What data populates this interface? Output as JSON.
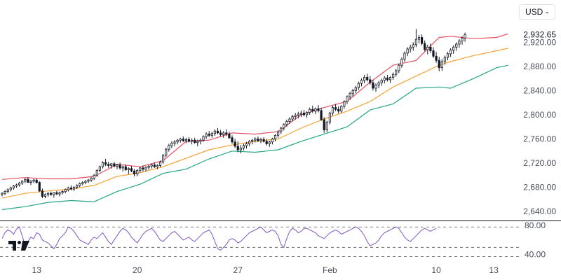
{
  "currency_selector": {
    "value": "USD"
  },
  "logo": {
    "name": "tradingview-logo-icon"
  },
  "colors": {
    "candle_up_fill": "#ffffff",
    "candle_down_fill": "#131722",
    "candle_outline": "#131722",
    "bb_upper": "#e4505f",
    "bb_basis": "#f7a233",
    "bb_lower": "#22a585",
    "rsi_line": "#7e57c2",
    "grid_dash": "#555555",
    "separator": "#131722",
    "axis_text": "#4a4e5a"
  },
  "chart_data": {
    "type": "candlestick",
    "symbol_currency": "USD",
    "last_price_label": "2,932.65",
    "last_price": 2932.65,
    "price_axis": {
      "ylim": [
        2625,
        2990
      ],
      "ticks": [
        2640,
        2680,
        2720,
        2760,
        2800,
        2840,
        2880,
        2920
      ],
      "tick_labels": [
        "2,640.00",
        "2,680.00",
        "2,720.00",
        "2,760.00",
        "2,800.00",
        "2,840.00",
        "2,880.00",
        "2,920.00"
      ]
    },
    "time_axis": {
      "labels": [
        {
          "text": "13",
          "index": 12
        },
        {
          "text": "20",
          "index": 47
        },
        {
          "text": "27",
          "index": 82
        },
        {
          "text": "Feb",
          "index": 114
        },
        {
          "text": "10",
          "index": 151
        },
        {
          "text": "13",
          "index": 171
        }
      ]
    },
    "candles": [
      [
        2668,
        2672,
        2665,
        2670
      ],
      [
        2670,
        2675,
        2667,
        2673
      ],
      [
        2673,
        2678,
        2670,
        2676
      ],
      [
        2676,
        2681,
        2673,
        2679
      ],
      [
        2679,
        2684,
        2676,
        2682
      ],
      [
        2682,
        2686,
        2679,
        2684
      ],
      [
        2684,
        2689,
        2681,
        2687
      ],
      [
        2687,
        2692,
        2684,
        2690
      ],
      [
        2690,
        2695,
        2687,
        2693
      ],
      [
        2693,
        2697,
        2689,
        2688
      ],
      [
        2688,
        2692,
        2684,
        2690
      ],
      [
        2690,
        2694,
        2687,
        2692
      ],
      [
        2692,
        2694,
        2686,
        2688
      ],
      [
        2688,
        2690,
        2672,
        2674
      ],
      [
        2674,
        2678,
        2662,
        2665
      ],
      [
        2665,
        2670,
        2662,
        2668
      ],
      [
        2668,
        2672,
        2664,
        2670
      ],
      [
        2670,
        2673,
        2666,
        2668
      ],
      [
        2668,
        2672,
        2663,
        2671
      ],
      [
        2671,
        2674,
        2667,
        2669
      ],
      [
        2669,
        2673,
        2665,
        2671
      ],
      [
        2671,
        2675,
        2668,
        2673
      ],
      [
        2673,
        2678,
        2670,
        2676
      ],
      [
        2676,
        2681,
        2673,
        2679
      ],
      [
        2679,
        2683,
        2675,
        2677
      ],
      [
        2677,
        2682,
        2674,
        2680
      ],
      [
        2680,
        2685,
        2677,
        2683
      ],
      [
        2683,
        2688,
        2680,
        2686
      ],
      [
        2686,
        2690,
        2683,
        2688
      ],
      [
        2688,
        2692,
        2685,
        2690
      ],
      [
        2690,
        2694,
        2687,
        2692
      ],
      [
        2692,
        2697,
        2689,
        2695
      ],
      [
        2695,
        2702,
        2692,
        2700
      ],
      [
        2700,
        2710,
        2697,
        2708
      ],
      [
        2708,
        2716,
        2705,
        2714
      ],
      [
        2714,
        2723,
        2711,
        2721
      ],
      [
        2721,
        2727,
        2715,
        2718
      ],
      [
        2718,
        2722,
        2712,
        2716
      ],
      [
        2716,
        2720,
        2711,
        2719
      ],
      [
        2719,
        2722,
        2713,
        2715
      ],
      [
        2715,
        2719,
        2710,
        2717
      ],
      [
        2717,
        2721,
        2709,
        2712
      ],
      [
        2712,
        2716,
        2706,
        2714
      ],
      [
        2714,
        2718,
        2707,
        2709
      ],
      [
        2709,
        2713,
        2702,
        2711
      ],
      [
        2711,
        2715,
        2705,
        2707
      ],
      [
        2707,
        2710,
        2698,
        2702
      ],
      [
        2702,
        2710,
        2698,
        2708
      ],
      [
        2708,
        2714,
        2704,
        2712
      ],
      [
        2712,
        2716,
        2706,
        2710
      ],
      [
        2710,
        2715,
        2706,
        2713
      ],
      [
        2713,
        2717,
        2709,
        2715
      ],
      [
        2715,
        2719,
        2711,
        2717
      ],
      [
        2717,
        2721,
        2712,
        2714
      ],
      [
        2714,
        2718,
        2710,
        2716
      ],
      [
        2716,
        2724,
        2713,
        2722
      ],
      [
        2722,
        2735,
        2719,
        2733
      ],
      [
        2733,
        2745,
        2730,
        2743
      ],
      [
        2743,
        2752,
        2739,
        2749
      ],
      [
        2749,
        2756,
        2745,
        2753
      ],
      [
        2753,
        2758,
        2748,
        2755
      ],
      [
        2755,
        2760,
        2751,
        2758
      ],
      [
        2758,
        2762,
        2754,
        2760
      ],
      [
        2760,
        2764,
        2755,
        2757
      ],
      [
        2757,
        2762,
        2753,
        2759
      ],
      [
        2759,
        2763,
        2754,
        2756
      ],
      [
        2756,
        2761,
        2751,
        2758
      ],
      [
        2758,
        2762,
        2752,
        2754
      ],
      [
        2754,
        2759,
        2748,
        2756
      ],
      [
        2756,
        2761,
        2751,
        2758
      ],
      [
        2758,
        2766,
        2755,
        2764
      ],
      [
        2764,
        2771,
        2760,
        2768
      ],
      [
        2768,
        2773,
        2763,
        2766
      ],
      [
        2766,
        2772,
        2762,
        2769
      ],
      [
        2769,
        2776,
        2765,
        2773
      ],
      [
        2773,
        2778,
        2768,
        2770
      ],
      [
        2770,
        2775,
        2764,
        2767
      ],
      [
        2767,
        2773,
        2762,
        2770
      ],
      [
        2770,
        2776,
        2765,
        2768
      ],
      [
        2768,
        2772,
        2760,
        2762
      ],
      [
        2762,
        2766,
        2752,
        2755
      ],
      [
        2755,
        2760,
        2745,
        2748
      ],
      [
        2748,
        2756,
        2738,
        2742
      ],
      [
        2742,
        2750,
        2736,
        2745
      ],
      [
        2745,
        2752,
        2741,
        2749
      ],
      [
        2749,
        2755,
        2744,
        2752
      ],
      [
        2752,
        2758,
        2748,
        2756
      ],
      [
        2756,
        2760,
        2751,
        2758
      ],
      [
        2758,
        2763,
        2754,
        2760
      ],
      [
        2760,
        2764,
        2755,
        2757
      ],
      [
        2757,
        2762,
        2753,
        2759
      ],
      [
        2759,
        2763,
        2754,
        2756
      ],
      [
        2756,
        2760,
        2749,
        2752
      ],
      [
        2752,
        2757,
        2747,
        2755
      ],
      [
        2755,
        2762,
        2751,
        2760
      ],
      [
        2760,
        2768,
        2756,
        2766
      ],
      [
        2766,
        2774,
        2762,
        2772
      ],
      [
        2772,
        2780,
        2768,
        2778
      ],
      [
        2778,
        2786,
        2774,
        2784
      ],
      [
        2784,
        2792,
        2780,
        2789
      ],
      [
        2789,
        2796,
        2785,
        2793
      ],
      [
        2793,
        2800,
        2789,
        2797
      ],
      [
        2797,
        2803,
        2792,
        2799
      ],
      [
        2799,
        2805,
        2794,
        2801
      ],
      [
        2801,
        2807,
        2796,
        2803
      ],
      [
        2803,
        2808,
        2797,
        2800
      ],
      [
        2800,
        2806,
        2795,
        2804
      ],
      [
        2804,
        2812,
        2800,
        2809
      ],
      [
        2809,
        2815,
        2803,
        2806
      ],
      [
        2806,
        2812,
        2801,
        2810
      ],
      [
        2810,
        2816,
        2804,
        2807
      ],
      [
        2807,
        2812,
        2790,
        2792
      ],
      [
        2792,
        2796,
        2770,
        2775
      ],
      [
        2775,
        2790,
        2771,
        2788
      ],
      [
        2788,
        2805,
        2784,
        2803
      ],
      [
        2803,
        2815,
        2799,
        2812
      ],
      [
        2812,
        2818,
        2806,
        2809
      ],
      [
        2809,
        2814,
        2802,
        2806
      ],
      [
        2806,
        2816,
        2803,
        2814
      ],
      [
        2814,
        2824,
        2810,
        2822
      ],
      [
        2822,
        2832,
        2818,
        2830
      ],
      [
        2830,
        2838,
        2825,
        2835
      ],
      [
        2835,
        2843,
        2830,
        2840
      ],
      [
        2840,
        2848,
        2836,
        2845
      ],
      [
        2845,
        2855,
        2841,
        2852
      ],
      [
        2852,
        2860,
        2847,
        2857
      ],
      [
        2857,
        2866,
        2852,
        2862
      ],
      [
        2862,
        2868,
        2855,
        2858
      ],
      [
        2858,
        2864,
        2850,
        2853
      ],
      [
        2853,
        2858,
        2840,
        2844
      ],
      [
        2844,
        2852,
        2838,
        2849
      ],
      [
        2849,
        2856,
        2844,
        2853
      ],
      [
        2853,
        2860,
        2848,
        2857
      ],
      [
        2857,
        2864,
        2852,
        2861
      ],
      [
        2861,
        2866,
        2855,
        2858
      ],
      [
        2858,
        2864,
        2853,
        2862
      ],
      [
        2862,
        2870,
        2858,
        2867
      ],
      [
        2867,
        2876,
        2863,
        2873
      ],
      [
        2873,
        2885,
        2869,
        2882
      ],
      [
        2882,
        2895,
        2878,
        2892
      ],
      [
        2892,
        2905,
        2888,
        2902
      ],
      [
        2902,
        2912,
        2897,
        2909
      ],
      [
        2909,
        2916,
        2903,
        2912
      ],
      [
        2912,
        2920,
        2906,
        2916
      ],
      [
        2916,
        2942,
        2912,
        2925
      ],
      [
        2925,
        2932,
        2918,
        2928
      ],
      [
        2928,
        2933,
        2915,
        2918
      ],
      [
        2918,
        2923,
        2905,
        2908
      ],
      [
        2908,
        2916,
        2900,
        2912
      ],
      [
        2912,
        2918,
        2902,
        2906
      ],
      [
        2906,
        2912,
        2894,
        2897
      ],
      [
        2897,
        2904,
        2886,
        2890
      ],
      [
        2890,
        2896,
        2872,
        2878
      ],
      [
        2878,
        2892,
        2873,
        2888
      ],
      [
        2888,
        2898,
        2883,
        2895
      ],
      [
        2895,
        2904,
        2890,
        2901
      ],
      [
        2901,
        2910,
        2896,
        2907
      ],
      [
        2907,
        2915,
        2901,
        2912
      ],
      [
        2912,
        2920,
        2906,
        2917
      ],
      [
        2917,
        2925,
        2911,
        2922
      ],
      [
        2922,
        2930,
        2916,
        2927
      ],
      [
        2927,
        2936,
        2921,
        2933
      ]
    ],
    "bollinger": {
      "upper": [
        [
          0,
          2693
        ],
        [
          8,
          2696
        ],
        [
          16,
          2694
        ],
        [
          24,
          2694
        ],
        [
          32,
          2698
        ],
        [
          40,
          2718
        ],
        [
          48,
          2714
        ],
        [
          56,
          2724
        ],
        [
          64,
          2756
        ],
        [
          72,
          2758
        ],
        [
          80,
          2770
        ],
        [
          88,
          2768
        ],
        [
          96,
          2772
        ],
        [
          104,
          2800
        ],
        [
          112,
          2812
        ],
        [
          120,
          2822
        ],
        [
          128,
          2854
        ],
        [
          136,
          2882
        ],
        [
          144,
          2890
        ],
        [
          152,
          2928
        ],
        [
          156,
          2930
        ],
        [
          164,
          2926
        ],
        [
          172,
          2928
        ],
        [
          176,
          2934
        ]
      ],
      "basis": [
        [
          0,
          2662
        ],
        [
          8,
          2670
        ],
        [
          16,
          2674
        ],
        [
          24,
          2677
        ],
        [
          32,
          2683
        ],
        [
          40,
          2698
        ],
        [
          48,
          2704
        ],
        [
          56,
          2714
        ],
        [
          64,
          2728
        ],
        [
          72,
          2742
        ],
        [
          80,
          2750
        ],
        [
          88,
          2756
        ],
        [
          96,
          2760
        ],
        [
          104,
          2778
        ],
        [
          112,
          2793
        ],
        [
          120,
          2806
        ],
        [
          128,
          2822
        ],
        [
          136,
          2846
        ],
        [
          144,
          2864
        ],
        [
          152,
          2882
        ],
        [
          156,
          2888
        ],
        [
          164,
          2898
        ],
        [
          172,
          2906
        ],
        [
          176,
          2910
        ]
      ],
      "lower": [
        [
          0,
          2643
        ],
        [
          8,
          2648
        ],
        [
          16,
          2655
        ],
        [
          24,
          2658
        ],
        [
          32,
          2656
        ],
        [
          40,
          2673
        ],
        [
          48,
          2685
        ],
        [
          56,
          2703
        ],
        [
          64,
          2710
        ],
        [
          72,
          2727
        ],
        [
          80,
          2740
        ],
        [
          88,
          2738
        ],
        [
          96,
          2742
        ],
        [
          104,
          2756
        ],
        [
          112,
          2768
        ],
        [
          120,
          2780
        ],
        [
          128,
          2808
        ],
        [
          136,
          2818
        ],
        [
          144,
          2844
        ],
        [
          152,
          2846
        ],
        [
          156,
          2844
        ],
        [
          164,
          2860
        ],
        [
          172,
          2878
        ],
        [
          176,
          2882
        ]
      ]
    },
    "rsi": {
      "ticks": [
        40,
        80
      ],
      "tick_labels": [
        "40.00",
        "80.00"
      ],
      "ylim": [
        32,
        84
      ],
      "band": [
        50,
        78
      ],
      "values": [
        62,
        70,
        74,
        72,
        68,
        75,
        78,
        66,
        52,
        58,
        64,
        62,
        70,
        68,
        60,
        58,
        56,
        52,
        48,
        54,
        62,
        66,
        70,
        78,
        76,
        72,
        66,
        60,
        58,
        56,
        54,
        60,
        64,
        62,
        66,
        70,
        64,
        58,
        54,
        60,
        66,
        72,
        76,
        74,
        70,
        64,
        60,
        56,
        62,
        68,
        72,
        74,
        76,
        72,
        66,
        60,
        58,
        62,
        66,
        70,
        72,
        68,
        64,
        60,
        62,
        64,
        60,
        58,
        62,
        66,
        70,
        72,
        74,
        68,
        58,
        48,
        46,
        50,
        54,
        60,
        62,
        60,
        56,
        58,
        62,
        66,
        70,
        72,
        74,
        76,
        78,
        74,
        70,
        72,
        74,
        72,
        66,
        54,
        50,
        62,
        72,
        76,
        74,
        70,
        72,
        76,
        76,
        74,
        72,
        70,
        66,
        64,
        62,
        66,
        70,
        72,
        74,
        72,
        68,
        70,
        72,
        74,
        76,
        78,
        76,
        72,
        66,
        58,
        52,
        54,
        56,
        60,
        66,
        70,
        72,
        74,
        76,
        78,
        76,
        70,
        64,
        60,
        58,
        62,
        66,
        70,
        74,
        76,
        74,
        72,
        74,
        76
      ]
    }
  }
}
